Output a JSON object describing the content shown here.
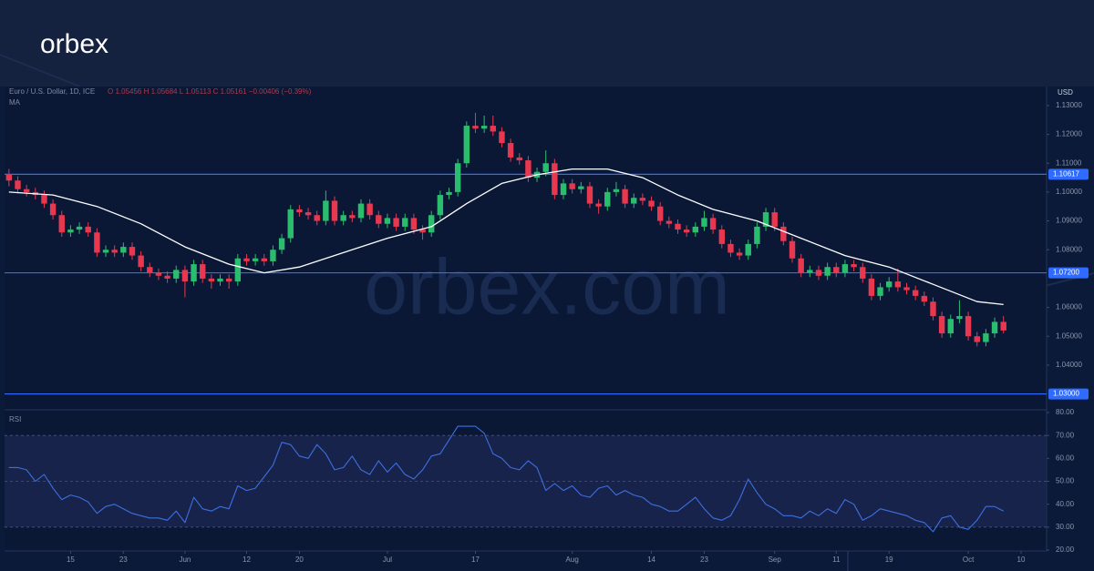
{
  "logo": "orbex",
  "chart_data": {
    "type": "candlestick",
    "symbol": "Euro / U.S. Dollar, 1D, ICE",
    "quote": "O 1.05456 H 1.05684 L 1.05113 C 1.05161 −0.00406 (−0.39%)",
    "currency": "USD",
    "watermark": "orbex.com",
    "color_up": "#2bbd6e",
    "color_down": "#e8384f",
    "candles": [
      [
        1.106,
        1.108,
        1.102,
        1.104
      ],
      [
        1.104,
        1.1055,
        1.0995,
        1.101
      ],
      [
        1.101,
        1.1025,
        1.0985,
        1.1
      ],
      [
        1.1,
        1.1015,
        1.0975,
        1.099
      ],
      [
        1.099,
        1.1005,
        1.0945,
        1.096
      ],
      [
        1.096,
        1.0975,
        1.0905,
        1.092
      ],
      [
        1.092,
        1.0935,
        1.0845,
        1.086
      ],
      [
        1.086,
        1.0885,
        1.0845,
        1.087
      ],
      [
        1.087,
        1.0895,
        1.0855,
        1.088
      ],
      [
        1.088,
        1.0895,
        1.0845,
        1.086
      ],
      [
        1.086,
        1.0875,
        1.0775,
        1.079
      ],
      [
        1.079,
        1.0815,
        1.0775,
        1.08
      ],
      [
        1.08,
        1.0815,
        1.0775,
        1.079
      ],
      [
        1.079,
        1.0825,
        1.0775,
        1.081
      ],
      [
        1.081,
        1.0825,
        1.0765,
        1.078
      ],
      [
        1.078,
        1.0795,
        1.0725,
        1.074
      ],
      [
        1.074,
        1.0755,
        1.0705,
        1.072
      ],
      [
        1.072,
        1.0735,
        1.0695,
        1.071
      ],
      [
        1.071,
        1.0725,
        1.0685,
        1.07
      ],
      [
        1.07,
        1.0745,
        1.0685,
        1.073
      ],
      [
        1.073,
        1.0745,
        1.0635,
        1.069
      ],
      [
        1.069,
        1.0765,
        1.0675,
        1.075
      ],
      [
        1.075,
        1.0765,
        1.0685,
        1.07
      ],
      [
        1.07,
        1.0715,
        1.0665,
        1.069
      ],
      [
        1.069,
        1.0715,
        1.0675,
        1.07
      ],
      [
        1.07,
        1.0715,
        1.0665,
        1.069
      ],
      [
        1.069,
        1.0785,
        1.0675,
        1.077
      ],
      [
        1.077,
        1.0785,
        1.0745,
        1.076
      ],
      [
        1.076,
        1.0785,
        1.0745,
        1.077
      ],
      [
        1.077,
        1.0785,
        1.0745,
        1.076
      ],
      [
        1.076,
        1.0815,
        1.0745,
        1.08
      ],
      [
        1.08,
        1.0855,
        1.0785,
        1.084
      ],
      [
        1.084,
        1.0955,
        1.0825,
        1.094
      ],
      [
        1.094,
        1.0955,
        1.0915,
        1.093
      ],
      [
        1.093,
        1.0945,
        1.0905,
        1.092
      ],
      [
        1.092,
        1.0935,
        1.0885,
        1.09
      ],
      [
        1.09,
        1.1005,
        1.0885,
        1.097
      ],
      [
        1.097,
        1.0985,
        1.0885,
        1.09
      ],
      [
        1.09,
        1.0935,
        1.0885,
        1.092
      ],
      [
        1.092,
        1.0935,
        1.0895,
        1.091
      ],
      [
        1.091,
        1.0975,
        1.0895,
        1.096
      ],
      [
        1.096,
        1.0975,
        1.0905,
        1.092
      ],
      [
        1.092,
        1.0935,
        1.0875,
        1.089
      ],
      [
        1.089,
        1.0925,
        1.0875,
        1.091
      ],
      [
        1.091,
        1.0925,
        1.0865,
        1.088
      ],
      [
        1.088,
        1.0925,
        1.0865,
        1.091
      ],
      [
        1.091,
        1.0925,
        1.0855,
        1.087
      ],
      [
        1.087,
        1.0885,
        1.0835,
        1.086
      ],
      [
        1.086,
        1.0935,
        1.0845,
        1.092
      ],
      [
        1.092,
        1.1005,
        1.0905,
        1.099
      ],
      [
        1.099,
        1.1015,
        1.0975,
        1.1
      ],
      [
        1.1,
        1.1115,
        1.0985,
        1.11
      ],
      [
        1.11,
        1.1245,
        1.1085,
        1.123
      ],
      [
        1.123,
        1.1275,
        1.1205,
        1.122
      ],
      [
        1.122,
        1.1265,
        1.1205,
        1.123
      ],
      [
        1.123,
        1.1265,
        1.1195,
        1.121
      ],
      [
        1.121,
        1.1225,
        1.1155,
        1.117
      ],
      [
        1.117,
        1.1185,
        1.1105,
        1.112
      ],
      [
        1.112,
        1.1135,
        1.1095,
        1.111
      ],
      [
        1.111,
        1.1125,
        1.1035,
        1.105
      ],
      [
        1.105,
        1.1085,
        1.1035,
        1.107
      ],
      [
        1.107,
        1.1145,
        1.1055,
        1.11
      ],
      [
        1.11,
        1.1115,
        1.0975,
        1.099
      ],
      [
        1.099,
        1.1045,
        1.0975,
        1.103
      ],
      [
        1.103,
        1.1045,
        1.0995,
        1.101
      ],
      [
        1.101,
        1.1035,
        1.0995,
        1.102
      ],
      [
        1.102,
        1.1035,
        1.0945,
        1.096
      ],
      [
        1.096,
        1.0975,
        1.0925,
        1.095
      ],
      [
        1.095,
        1.1015,
        1.0935,
        1.1
      ],
      [
        1.1,
        1.1035,
        1.0985,
        1.101
      ],
      [
        1.101,
        1.1025,
        1.0945,
        1.096
      ],
      [
        1.096,
        1.0995,
        1.0945,
        1.098
      ],
      [
        1.098,
        1.0995,
        1.0955,
        1.097
      ],
      [
        1.097,
        1.0985,
        1.0935,
        1.095
      ],
      [
        1.095,
        1.0965,
        1.0885,
        1.09
      ],
      [
        1.09,
        1.0915,
        1.0875,
        1.089
      ],
      [
        1.089,
        1.0905,
        1.0855,
        1.087
      ],
      [
        1.087,
        1.0885,
        1.0845,
        1.086
      ],
      [
        1.086,
        1.0895,
        1.0845,
        1.088
      ],
      [
        1.088,
        1.0935,
        1.0865,
        1.091
      ],
      [
        1.091,
        1.0925,
        1.0855,
        1.087
      ],
      [
        1.087,
        1.0885,
        1.0805,
        1.082
      ],
      [
        1.082,
        1.0835,
        1.0775,
        1.079
      ],
      [
        1.079,
        1.0805,
        1.0765,
        1.078
      ],
      [
        1.078,
        1.0835,
        1.0765,
        1.082
      ],
      [
        1.082,
        1.0895,
        1.0805,
        1.088
      ],
      [
        1.088,
        1.0945,
        1.0865,
        1.093
      ],
      [
        1.093,
        1.0945,
        1.0865,
        1.088
      ],
      [
        1.088,
        1.0895,
        1.0815,
        1.083
      ],
      [
        1.083,
        1.0845,
        1.0755,
        1.077
      ],
      [
        1.077,
        1.0785,
        1.0705,
        1.072
      ],
      [
        1.072,
        1.0745,
        1.0705,
        1.073
      ],
      [
        1.073,
        1.0745,
        1.0695,
        1.071
      ],
      [
        1.071,
        1.0755,
        1.0695,
        1.074
      ],
      [
        1.074,
        1.0755,
        1.0705,
        1.072
      ],
      [
        1.072,
        1.0765,
        1.0705,
        1.075
      ],
      [
        1.075,
        1.0765,
        1.0725,
        1.074
      ],
      [
        1.074,
        1.0755,
        1.0685,
        1.07
      ],
      [
        1.07,
        1.0715,
        1.0625,
        1.064
      ],
      [
        1.064,
        1.0685,
        1.0625,
        1.067
      ],
      [
        1.067,
        1.0705,
        1.0655,
        1.069
      ],
      [
        1.069,
        1.0735,
        1.0655,
        1.067
      ],
      [
        1.067,
        1.0685,
        1.0645,
        1.066
      ],
      [
        1.066,
        1.0675,
        1.0625,
        1.064
      ],
      [
        1.064,
        1.0655,
        1.0605,
        1.062
      ],
      [
        1.062,
        1.0635,
        1.0555,
        1.057
      ],
      [
        1.057,
        1.0585,
        1.0495,
        1.051
      ],
      [
        1.051,
        1.0575,
        1.0495,
        1.056
      ],
      [
        1.056,
        1.0625,
        1.0545,
        1.057
      ],
      [
        1.057,
        1.0585,
        1.0485,
        1.05
      ],
      [
        1.05,
        1.0515,
        1.0465,
        1.048
      ],
      [
        1.048,
        1.0525,
        1.0465,
        1.051
      ],
      [
        1.051,
        1.0565,
        1.0495,
        1.055
      ],
      [
        1.055,
        1.057,
        1.051,
        1.052
      ]
    ],
    "ma": {
      "name": "MA",
      "color": "#ffffff",
      "x": [
        0,
        5,
        10,
        15,
        20,
        25,
        29,
        33,
        38,
        43,
        48,
        52,
        56,
        60,
        64,
        68,
        72,
        76,
        80,
        85,
        90,
        95,
        100,
        105,
        110,
        113
      ],
      "values": [
        1.1,
        1.099,
        1.095,
        1.089,
        1.081,
        1.075,
        1.072,
        1.074,
        1.079,
        1.084,
        1.088,
        1.096,
        1.103,
        1.106,
        1.108,
        1.108,
        1.105,
        1.099,
        1.094,
        1.09,
        1.084,
        1.078,
        1.074,
        1.068,
        1.062,
        1.061
      ]
    },
    "ylim": [
      1.0245,
      1.1366
    ],
    "yticks": [
      {
        "value": 1.13,
        "label": "1.13000"
      },
      {
        "value": 1.12,
        "label": "1.12000"
      },
      {
        "value": 1.11,
        "label": "1.11000"
      },
      {
        "value": 1.1,
        "label": "1.10000"
      },
      {
        "value": 1.09,
        "label": "1.09000"
      },
      {
        "value": 1.08,
        "label": "1.08000"
      },
      {
        "value": 1.06,
        "label": "1.06000"
      },
      {
        "value": 1.05,
        "label": "1.05000"
      },
      {
        "value": 1.04,
        "label": "1.04000"
      }
    ],
    "levels": [
      {
        "value": 1.10617,
        "label": "1.10617"
      },
      {
        "value": 1.072,
        "label": "1.07200"
      },
      {
        "value": 1.03,
        "label": "1.03000"
      }
    ],
    "level_color": "#2f6bff",
    "xlim": [
      -0.5,
      117.9
    ],
    "xticks": [
      {
        "value": 7,
        "label": "15"
      },
      {
        "value": 13,
        "label": "23"
      },
      {
        "value": 20,
        "label": "Jun"
      },
      {
        "value": 27,
        "label": "12"
      },
      {
        "value": 33,
        "label": "20"
      },
      {
        "value": 43,
        "label": "Jul"
      },
      {
        "value": 53,
        "label": "17"
      },
      {
        "value": 64,
        "label": "Aug"
      },
      {
        "value": 73,
        "label": "14"
      },
      {
        "value": 79,
        "label": "23"
      },
      {
        "value": 87,
        "label": "Sep"
      },
      {
        "value": 94,
        "label": "11"
      },
      {
        "value": 100,
        "label": "19"
      },
      {
        "value": 109,
        "label": "Oct"
      },
      {
        "value": 115,
        "label": "10"
      }
    ],
    "rsi": {
      "name": "RSI",
      "color": "#3d6fe0",
      "values": [
        56,
        56,
        55,
        50,
        53,
        47,
        42,
        44,
        43,
        41,
        36,
        39,
        40,
        38,
        36,
        35,
        34,
        34,
        33,
        37,
        32,
        43,
        38,
        37,
        39,
        38,
        48,
        46,
        47,
        52,
        57,
        67,
        66,
        61,
        60,
        66,
        62,
        55,
        56,
        61,
        55,
        53,
        59,
        54,
        58,
        53,
        51,
        55,
        61,
        62,
        68,
        74,
        74,
        74,
        71,
        62,
        60,
        56,
        55,
        59,
        56,
        46,
        49,
        46,
        48,
        44,
        43,
        47,
        48,
        44,
        46,
        44,
        43,
        40,
        39,
        37,
        37,
        40,
        43,
        38,
        34,
        33,
        35,
        42,
        51,
        45,
        40,
        38,
        35,
        35,
        34,
        37,
        35,
        38,
        36,
        42,
        40,
        33,
        35,
        38,
        37,
        36,
        35,
        33,
        32,
        28,
        34,
        35,
        30,
        29,
        33,
        39,
        39,
        37
      ],
      "ylim": [
        19.6,
        81.2
      ],
      "yticks": [
        {
          "value": 80,
          "label": "80.00"
        },
        {
          "value": 70,
          "label": "70.00"
        },
        {
          "value": 60,
          "label": "60.00"
        },
        {
          "value": 50,
          "label": "50.00"
        },
        {
          "value": 40,
          "label": "40.00"
        },
        {
          "value": 30,
          "label": "30.00"
        },
        {
          "value": 20,
          "label": "20.00"
        }
      ],
      "band": [
        30,
        70
      ]
    }
  }
}
